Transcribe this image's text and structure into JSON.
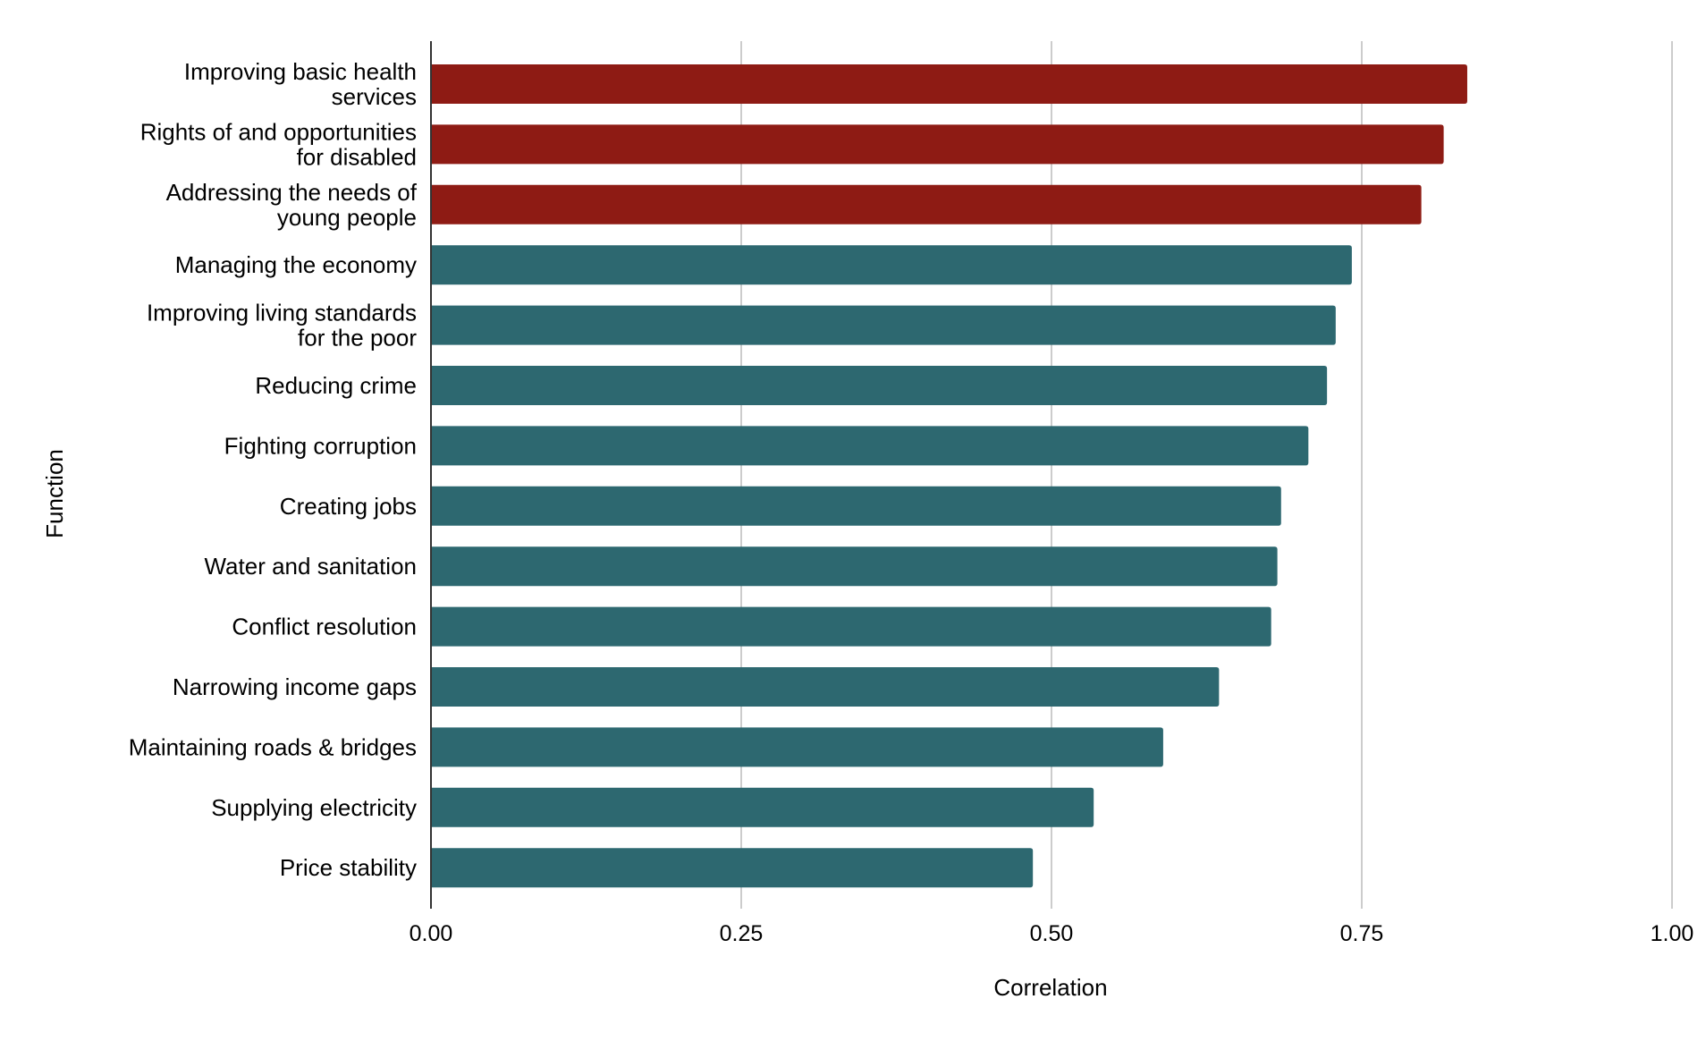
{
  "chart_data": {
    "type": "bar",
    "orientation": "horizontal",
    "xlabel": "Correlation",
    "ylabel": "Function",
    "xlim": [
      0,
      1
    ],
    "xticks": [
      "0.00",
      "0.25",
      "0.50",
      "0.75",
      "1.00"
    ],
    "grid": "vertical",
    "colors": {
      "highlight": "#8E1B14",
      "default": "#2D6870"
    },
    "categories": [
      [
        "Improving basic health",
        "services"
      ],
      [
        "Rights of and opportunities",
        "for disabled"
      ],
      [
        "Addressing the needs of",
        "young people"
      ],
      [
        "Managing the economy"
      ],
      [
        "Improving living standards",
        "for the poor"
      ],
      [
        "Reducing crime"
      ],
      [
        "Fighting corruption"
      ],
      [
        "Creating jobs"
      ],
      [
        "Water and sanitation"
      ],
      [
        "Conflict resolution"
      ],
      [
        "Narrowing income gaps"
      ],
      [
        "Maintaining roads & bridges"
      ],
      [
        "Supplying electricity"
      ],
      [
        "Price stability"
      ]
    ],
    "values": [
      0.835,
      0.816,
      0.798,
      0.742,
      0.729,
      0.722,
      0.707,
      0.685,
      0.682,
      0.677,
      0.635,
      0.59,
      0.534,
      0.485
    ],
    "highlighted": [
      true,
      true,
      true,
      false,
      false,
      false,
      false,
      false,
      false,
      false,
      false,
      false,
      false,
      false
    ]
  }
}
